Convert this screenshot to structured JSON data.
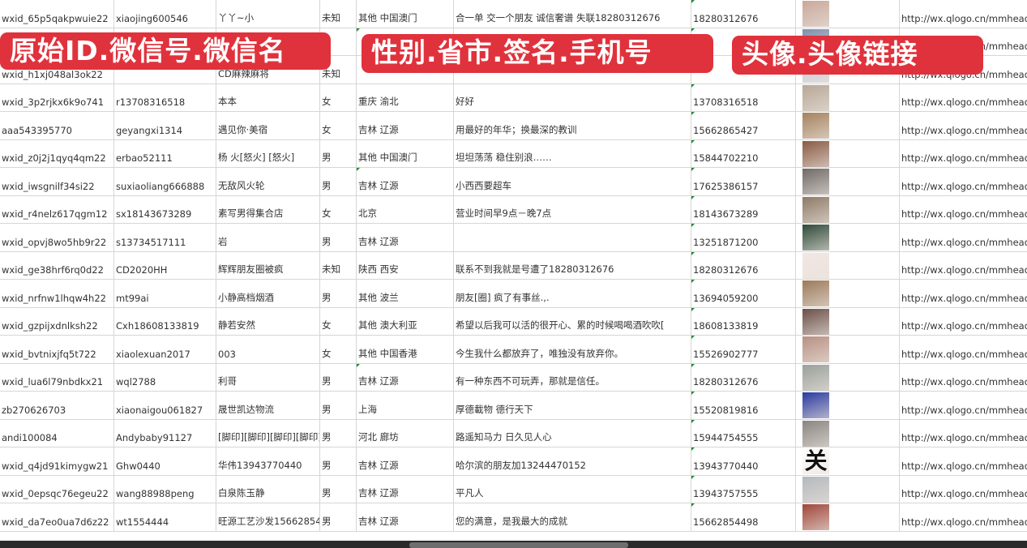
{
  "rows": [
    {
      "original_id": "wxid_65p5qakpwuie22",
      "wechat_id": "xiaojing600546",
      "wechat_name": "丫丫~小",
      "gender": "未知",
      "region": "其他 中国澳门",
      "signature": "合一单 交一个朋友 诚信奢谱 失联18280312676",
      "phone": "18280312676",
      "avatar_color": "#c9a89a",
      "avatar_url": "http://wx.qlogo.cn/mmhead"
    },
    {
      "original_id": "",
      "wechat_id": "",
      "wechat_name": "",
      "gender": "",
      "region": "",
      "signature": "",
      "phone": "",
      "avatar_color": "#7d8fb0",
      "avatar_url": "http://wx.qlogo.cn/mmhead"
    },
    {
      "original_id": "wxid_h1xj048al3ok22",
      "wechat_id": "",
      "wechat_name": "CD麻辣麻将",
      "gender": "未知",
      "region": "",
      "signature": "",
      "phone": "",
      "avatar_color": "#c8ccd6",
      "avatar_url": "http://wx.qlogo.cn/mmhead"
    },
    {
      "original_id": "wxid_3p2rjkx6k9o741",
      "wechat_id": "r13708316518",
      "wechat_name": "本本",
      "gender": "女",
      "region": "重庆 渝北",
      "signature": "好好",
      "phone": "13708316518",
      "avatar_color": "#b7a796",
      "avatar_url": "http://wx.qlogo.cn/mmhead"
    },
    {
      "original_id": "aaa543395770",
      "wechat_id": "geyangxi1314",
      "wechat_name": "遇见你·美宿",
      "gender": "女",
      "region": "吉林 辽源",
      "signature": "用最好的年华；换最深的教训",
      "phone": "15662865427",
      "avatar_color": "#a5825e",
      "avatar_url": "http://wx.qlogo.cn/mmhead"
    },
    {
      "original_id": "wxid_z0j2j1qyq4qm22",
      "wechat_id": "erbao52111",
      "wechat_name": "杨 火[怒火] [怒火]",
      "gender": "男",
      "region": "其他 中国澳门",
      "signature": "坦坦荡荡 稳住别浪……",
      "phone": "15844702210",
      "avatar_color": "#8a5a44",
      "avatar_url": "http://wx.qlogo.cn/mmhead"
    },
    {
      "original_id": "wxid_iwsgnilf34si22",
      "wechat_id": "suxiaoliang666888",
      "wechat_name": "无敌风火轮",
      "gender": "男",
      "region": "吉林 辽源",
      "signature": "小西西要超车",
      "phone": "17625386157",
      "avatar_color": "#6f6a66",
      "avatar_url": "http://wx.qlogo.cn/mmhead"
    },
    {
      "original_id": "wxid_r4nelz617qgm12",
      "wechat_id": "sx18143673289",
      "wechat_name": "素写男得集合店",
      "gender": "女",
      "region": "北京",
      "signature": "营业时间早9点－晚7点",
      "phone": "18143673289",
      "avatar_color": "#8e7a66",
      "avatar_url": "http://wx.qlogo.cn/mmhead"
    },
    {
      "original_id": "wxid_opvj8wo5hb9r22",
      "wechat_id": "s13734517111",
      "wechat_name": "岩",
      "gender": "男",
      "region": "吉林 辽源",
      "signature": "",
      "phone": "13251871200",
      "avatar_color": "#2f4a3a",
      "avatar_url": "http://wx.qlogo.cn/mmhead"
    },
    {
      "original_id": "wxid_ge38hrf6rq0d22",
      "wechat_id": "CD2020HH",
      "wechat_name": "辉辉朋友圈被疯",
      "gender": "未知",
      "region": "陕西 西安",
      "signature": "联系不到我就是号遭了18280312676",
      "phone": "18280312676",
      "avatar_color": "#f2e6e2",
      "avatar_url": "http://wx.qlogo.cn/mmhead"
    },
    {
      "original_id": "wxid_nrfnw1lhqw4h22",
      "wechat_id": "mt99ai",
      "wechat_name": "小静高档烟酒",
      "gender": "男",
      "region": "其他 波兰",
      "signature": "朋友[圈] 疯了有事丝.,.",
      "phone": "13694059200",
      "avatar_color": "#9c7a5a",
      "avatar_url": "http://wx.qlogo.cn/mmhead"
    },
    {
      "original_id": "wxid_gzpijxdnlksh22",
      "wechat_id": "Cxh18608133819",
      "wechat_name": "静若安然",
      "gender": "女",
      "region": "其他 澳大利亚",
      "signature": "希望以后我可以活的很开心、累的时候喝喝酒吹吹[",
      "phone": "18608133819",
      "avatar_color": "#6b5048",
      "avatar_url": "http://wx.qlogo.cn/mmhead"
    },
    {
      "original_id": "wxid_bvtnixjfq5t722",
      "wechat_id": "xiaolexuan2017",
      "wechat_name": "003",
      "gender": "女",
      "region": "其他 中国香港",
      "signature": "今生我什么都放弃了，唯独没有放弃你。",
      "phone": "15526902777",
      "avatar_color": "#b89082",
      "avatar_url": "http://wx.qlogo.cn/mmhead"
    },
    {
      "original_id": "wxid_lua6l79nbdkx21",
      "wechat_id": "wql2788",
      "wechat_name": "利哥",
      "gender": "男",
      "region": "吉林 辽源",
      "signature": "有一种东西不可玩弄，那就是信任。",
      "phone": "18280312676",
      "avatar_color": "#9aa09a",
      "avatar_url": "http://wx.qlogo.cn/mmhead"
    },
    {
      "original_id": "zb270626703",
      "wechat_id": "xiaonaigou061827",
      "wechat_name": "晟世凯达物流",
      "gender": "男",
      "region": "上海",
      "signature": "厚德載物 德行天下",
      "phone": "15520819816",
      "avatar_color": "#2a3aa0",
      "avatar_url": "http://wx.qlogo.cn/mmhead"
    },
    {
      "original_id": "andi100084",
      "wechat_id": "Andybaby91127",
      "wechat_name": "[脚印][脚印][脚印][脚印]",
      "gender": "男",
      "region": "河北 廊坊",
      "signature": "路遥知马力 日久见人心",
      "phone": "15944754555",
      "avatar_color": "#8a8580",
      "avatar_url": "http://wx.qlogo.cn/mmhead"
    },
    {
      "original_id": "wxid_q4jd91kimygw21",
      "wechat_id": "Ghw0440",
      "wechat_name": "华伟13943770440",
      "gender": "男",
      "region": "吉林 辽源",
      "signature": "哈尔滨的朋友加13244470152",
      "phone": "13943770440",
      "avatar_color": "#ffffff",
      "avatar_url": "http://wx.qlogo.cn/mmhead",
      "avatar_glyph": "关"
    },
    {
      "original_id": "wxid_0epsqc76egeu22",
      "wechat_id": "wang88988peng",
      "wechat_name": "白泉陈玉静",
      "gender": "男",
      "region": "吉林 辽源",
      "signature": "平凡人",
      "phone": "13943757555",
      "avatar_color": "#b4b8bc",
      "avatar_url": "http://wx.qlogo.cn/mmhead"
    },
    {
      "original_id": "wxid_da7eo0ua7d6z22",
      "wechat_id": "wt1554444",
      "wechat_name": "旺源工艺沙发15662854",
      "gender": "男",
      "region": "吉林 辽源",
      "signature": "您的满意，是我最大的成就",
      "phone": "15662854498",
      "avatar_color": "#a0463a",
      "avatar_url": "http://wx.qlogo.cn/mmhead"
    }
  ],
  "overlays": {
    "label1": "原始ID.微信号.微信名",
    "label2": "性别.省市.签名.手机号",
    "label3": "头像.头像链接",
    "color": "#e0323c"
  }
}
